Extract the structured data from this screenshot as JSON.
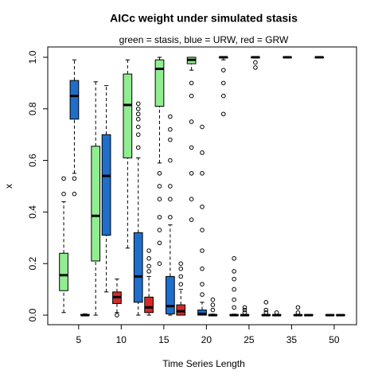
{
  "chart_data": {
    "type": "boxplot",
    "title": "AICc weight under simulated stasis",
    "subtitle": "green = stasis, blue = URW, red = GRW",
    "x_label": "Time Series Length",
    "y_label": "x",
    "xlim": [
      -0.5,
      28.5
    ],
    "xticks": [
      {
        "value": 2.4,
        "label": "5"
      },
      {
        "value": 6.4,
        "label": "10"
      },
      {
        "value": 10.4,
        "label": "15"
      },
      {
        "value": 14.4,
        "label": "20"
      },
      {
        "value": 18.4,
        "label": "25"
      },
      {
        "value": 22.4,
        "label": "35"
      },
      {
        "value": 26.4,
        "label": "50"
      }
    ],
    "ylim": [
      -0.037,
      1.04
    ],
    "yticks": [
      {
        "value": 0,
        "label": "0.0"
      },
      0.2,
      0.4,
      0.6,
      0.8,
      {
        "value": 1,
        "label": "1.0"
      }
    ],
    "boxes": [
      {
        "color": "#90ee90",
        "whislo": 0.01,
        "q1": 0.095,
        "med": 0.155,
        "q3": 0.24,
        "whishi": 0.44,
        "outliers": [
          0.47,
          0.53
        ]
      },
      {
        "color": "#1e6fcc",
        "whislo": 0.55,
        "q1": 0.76,
        "med": 0.85,
        "q3": 0.91,
        "whishi": 0.99,
        "outliers": [
          0.47,
          0.53
        ]
      },
      {
        "color": "#d42a2a",
        "whislo": 0,
        "q1": 0,
        "med": 0,
        "q3": 0.003,
        "whishi": 0.005,
        "outliers": []
      },
      {
        "color": "#90ee90",
        "whislo": 0,
        "q1": 0.21,
        "med": 0.385,
        "q3": 0.655,
        "whishi": 0.905,
        "outliers": []
      },
      {
        "color": "#1e6fcc",
        "whislo": 0.09,
        "q1": 0.31,
        "med": 0.54,
        "q3": 0.7,
        "whishi": 0.89,
        "outliers": []
      },
      {
        "color": "#d42a2a",
        "whislo": 0.01,
        "q1": 0.045,
        "med": 0.07,
        "q3": 0.09,
        "whishi": 0.14,
        "outliers": [
          0.0
        ]
      },
      {
        "color": "#90ee90",
        "whislo": 0.26,
        "q1": 0.61,
        "med": 0.815,
        "q3": 0.935,
        "whishi": 0.99,
        "outliers": []
      },
      {
        "color": "#1e6fcc",
        "whislo": 0,
        "q1": 0.05,
        "med": 0.15,
        "q3": 0.32,
        "whishi": 0.61,
        "outliers": [
          0.65,
          0.7,
          0.73,
          0.76,
          0.78,
          0.8,
          0.82
        ]
      },
      {
        "color": "#d42a2a",
        "whislo": 0,
        "q1": 0.01,
        "med": 0.03,
        "q3": 0.07,
        "whishi": 0.15,
        "outliers": [
          0.17,
          0.19,
          0.22,
          0.25
        ]
      },
      {
        "color": "#90ee90",
        "whislo": 0.59,
        "q1": 0.81,
        "med": 0.955,
        "q3": 0.99,
        "whishi": 1,
        "outliers": [
          0.55,
          0.5,
          0.45,
          0.38,
          0.33,
          0.28,
          0.2
        ]
      },
      {
        "color": "#1e6fcc",
        "whislo": 0,
        "q1": 0.005,
        "med": 0.035,
        "q3": 0.15,
        "whishi": 0.35,
        "outliers": [
          0.38,
          0.45,
          0.5,
          0.6,
          0.68,
          0.72,
          0.77
        ]
      },
      {
        "color": "#d42a2a",
        "whislo": 0,
        "q1": 0,
        "med": 0.015,
        "q3": 0.04,
        "whishi": 0.1,
        "outliers": [
          0.12,
          0.15,
          0.18,
          0.2
        ]
      },
      {
        "color": "#90ee90",
        "whislo": 0.95,
        "q1": 0.975,
        "med": 0.99,
        "q3": 1,
        "whishi": 1,
        "outliers": [
          0.9,
          0.85,
          0.75,
          0.65,
          0.55,
          0.45,
          0.37
        ]
      },
      {
        "color": "#1e6fcc",
        "whislo": 0,
        "q1": 0,
        "med": 0.005,
        "q3": 0.02,
        "whishi": 0.05,
        "outliers": [
          0.08,
          0.12,
          0.18,
          0.25,
          0.33,
          0.42,
          0.55,
          0.63,
          0.73
        ]
      },
      {
        "color": "#d42a2a",
        "whislo": 0,
        "q1": 0,
        "med": 0,
        "q3": 0.002,
        "whishi": 0.004,
        "outliers": [
          0.02,
          0.04,
          0.06
        ]
      },
      {
        "color": "#90ee90",
        "whislo": 0.99,
        "q1": 0.998,
        "med": 1,
        "q3": 1,
        "whishi": 1,
        "outliers": [
          0.95,
          0.9,
          0.85,
          0.78
        ]
      },
      {
        "color": "#1e6fcc",
        "whislo": 0,
        "q1": 0,
        "med": 0,
        "q3": 0.002,
        "whishi": 0.004,
        "outliers": [
          0.03,
          0.06,
          0.1,
          0.14,
          0.17,
          0.22
        ]
      },
      {
        "color": "#d42a2a",
        "whislo": 0,
        "q1": 0,
        "med": 0,
        "q3": 0.001,
        "whishi": 0.002,
        "outliers": [
          0.01,
          0.02,
          0.03
        ]
      },
      {
        "color": "#90ee90",
        "whislo": 0.999,
        "q1": 0.999,
        "med": 1,
        "q3": 1,
        "whishi": 1,
        "outliers": [
          0.98,
          0.96
        ]
      },
      {
        "color": "#1e6fcc",
        "whislo": 0,
        "q1": 0,
        "med": 0,
        "q3": 0.001,
        "whishi": 0.002,
        "outliers": [
          0.01,
          0.02,
          0.05
        ]
      },
      {
        "color": "#d42a2a",
        "whislo": 0,
        "q1": 0,
        "med": 0,
        "q3": 0.001,
        "whishi": 0.001,
        "outliers": [
          0.01
        ]
      },
      {
        "color": "#90ee90",
        "whislo": 0.999,
        "q1": 0.999,
        "med": 1,
        "q3": 1,
        "whishi": 1,
        "outliers": []
      },
      {
        "color": "#1e6fcc",
        "whislo": 0,
        "q1": 0,
        "med": 0,
        "q3": 0.001,
        "whishi": 0.001,
        "outliers": [
          0.01,
          0.03
        ]
      },
      {
        "color": "#d42a2a",
        "whislo": 0,
        "q1": 0,
        "med": 0,
        "q3": 0.001,
        "whishi": 0.001,
        "outliers": []
      },
      {
        "color": "#90ee90",
        "whislo": 0.999,
        "q1": 0.999,
        "med": 1,
        "q3": 1,
        "whishi": 1,
        "outliers": []
      },
      {
        "color": "#1e6fcc",
        "whislo": 0,
        "q1": 0,
        "med": 0,
        "q3": 0.001,
        "whishi": 0.001,
        "outliers": []
      },
      {
        "color": "#d42a2a",
        "whislo": 0,
        "q1": 0,
        "med": 0,
        "q3": 0.001,
        "whishi": 0.001,
        "outliers": []
      }
    ]
  }
}
